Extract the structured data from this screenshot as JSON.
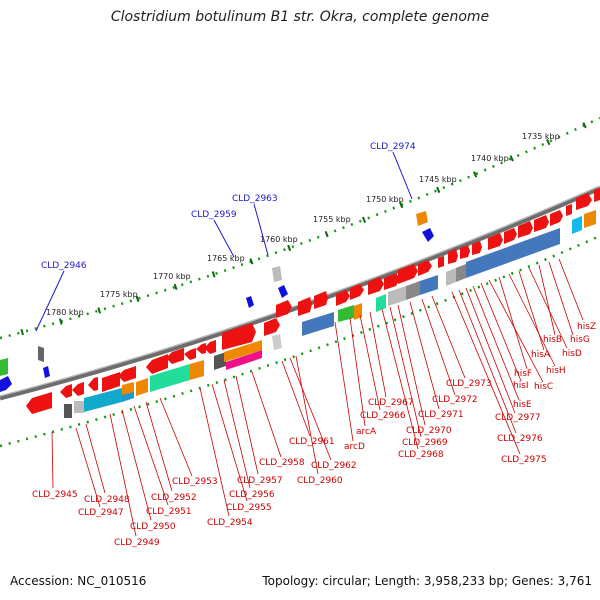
{
  "title": "Clostridium botulinum B1 str. Okra, complete genome",
  "footer": {
    "accession": "Accession: NC_010516",
    "topology": "Topology: circular; Length: 3,958,233 bp; Genes: 3,761"
  },
  "ruler": [
    "1735 kbp",
    "1740 kbp",
    "1745 kbp",
    "1750 kbp",
    "1755 kbp",
    "1760 kbp",
    "1765 kbp",
    "1770 kbp",
    "1775 kbp",
    "1780 kbp"
  ],
  "labels_top": [
    "CLD_2974",
    "CLD_2963",
    "CLD_2959",
    "CLD_2946"
  ],
  "labels_bottom": [
    "hisZ",
    "hisG",
    "hisB",
    "hisD",
    "hisA",
    "hisH",
    "hisF",
    "hisC",
    "hisI",
    "hisE",
    "CLD_2977",
    "CLD_2976",
    "CLD_2975",
    "CLD_2973",
    "CLD_2972",
    "CLD_2971",
    "CLD_2970",
    "CLD_2969",
    "CLD_2968",
    "CLD_2967",
    "CLD_2966",
    "arcA",
    "arcD",
    "CLD_2961",
    "CLD_2962",
    "CLD_2960",
    "CLD_2958",
    "CLD_2957",
    "CLD_2956",
    "CLD_2955",
    "CLD_2954",
    "CLD_2953",
    "CLD_2952",
    "CLD_2951",
    "CLD_2950",
    "CLD_2949",
    "CLD_2948",
    "CLD_2947",
    "CLD_2945"
  ],
  "colors": {
    "gene": "#ee1111",
    "label_blue": "#1a1acc",
    "label_red": "#cc0000",
    "backbone": "#777777",
    "dots": "#119911"
  }
}
